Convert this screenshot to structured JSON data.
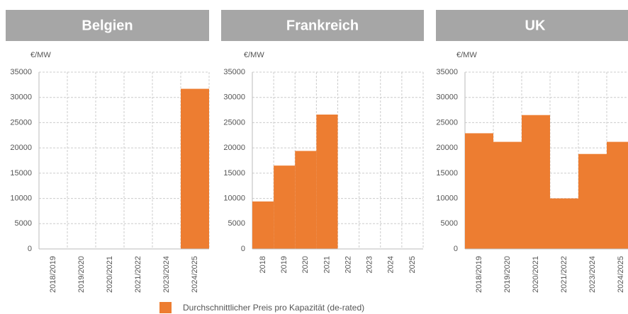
{
  "chart_data": [
    {
      "type": "bar",
      "title": "Belgien",
      "y_label": "€/MW",
      "categories": [
        "2018/2019",
        "2019/2020",
        "2020/2021",
        "2021/2022",
        "2023/2024",
        "2024/2025"
      ],
      "values": [
        0,
        0,
        0,
        0,
        0,
        31700
      ],
      "color": "#ed7d31",
      "ylim": [
        0,
        35000
      ],
      "yticks": [
        0,
        5000,
        10000,
        15000,
        20000,
        25000,
        30000,
        35000
      ],
      "grid": true
    },
    {
      "type": "bar",
      "title": "Frankreich",
      "y_label": "€/MW",
      "categories": [
        "2018",
        "2019",
        "2020",
        "2021",
        "2022",
        "2023",
        "2024",
        "2025"
      ],
      "values": [
        9400,
        16500,
        19400,
        26600,
        0,
        0,
        0,
        0
      ],
      "color": "#ed7d31",
      "ylim": [
        0,
        35000
      ],
      "yticks": [
        0,
        5000,
        10000,
        15000,
        20000,
        25000,
        30000,
        35000
      ],
      "grid": true
    },
    {
      "type": "bar",
      "title": "UK",
      "y_label": "€/MW",
      "categories": [
        "2018/2019",
        "2019/2020",
        "2020/2021",
        "2021/2022",
        "2023/2024",
        "2024/2025"
      ],
      "values": [
        22900,
        21200,
        26500,
        10000,
        18800,
        21200
      ],
      "color": "#ed7d31",
      "ylim": [
        0,
        35000
      ],
      "yticks": [
        0,
        5000,
        10000,
        15000,
        20000,
        25000,
        30000,
        35000
      ],
      "grid": true
    }
  ],
  "legend": {
    "label": "Durchschnittlicher Preis pro Kapazität (de-rated)",
    "color": "#ed7d31"
  }
}
